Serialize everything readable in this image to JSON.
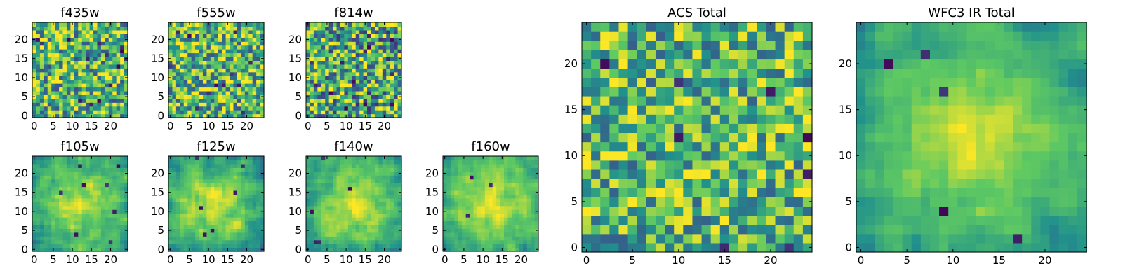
{
  "colormap": "viridis",
  "colormap_stops": [
    "#440154",
    "#3b528b",
    "#21918c",
    "#5ec962",
    "#fde725"
  ],
  "chart_data": [
    {
      "type": "heatmap",
      "title": "f435w",
      "grid": [
        25,
        25
      ],
      "xlim": [
        0,
        24
      ],
      "ylim": [
        0,
        24
      ],
      "xticks": [
        0,
        5,
        10,
        15,
        20
      ],
      "yticks": [
        0,
        5,
        10,
        15,
        20
      ],
      "seed": 11,
      "pattern": "noise",
      "level": 0.66,
      "spread": 0.42,
      "dark_spots": 14
    },
    {
      "type": "heatmap",
      "title": "f555w",
      "grid": [
        25,
        25
      ],
      "xlim": [
        0,
        24
      ],
      "ylim": [
        0,
        24
      ],
      "xticks": [
        0,
        5,
        10,
        15,
        20
      ],
      "yticks": [
        0,
        5,
        10,
        15,
        20
      ],
      "seed": 23,
      "pattern": "noise",
      "level": 0.68,
      "spread": 0.42,
      "dark_spots": 12
    },
    {
      "type": "heatmap",
      "title": "f814w",
      "grid": [
        25,
        25
      ],
      "xlim": [
        0,
        24
      ],
      "ylim": [
        0,
        24
      ],
      "xticks": [
        0,
        5,
        10,
        15,
        20
      ],
      "yticks": [
        0,
        5,
        10,
        15,
        20
      ],
      "seed": 37,
      "pattern": "noise",
      "level": 0.62,
      "spread": 0.45,
      "dark_spots": 22
    },
    {
      "type": "heatmap",
      "title": "f105w",
      "grid": [
        25,
        25
      ],
      "xlim": [
        0,
        24
      ],
      "ylim": [
        0,
        24
      ],
      "xticks": [
        0,
        5,
        10,
        15,
        20
      ],
      "yticks": [
        0,
        5,
        10,
        15,
        20
      ],
      "seed": 41,
      "pattern": "center",
      "level": 0.5,
      "spread": 0.35,
      "dark_spots": 8
    },
    {
      "type": "heatmap",
      "title": "f125w",
      "grid": [
        25,
        25
      ],
      "xlim": [
        0,
        24
      ],
      "ylim": [
        0,
        24
      ],
      "xticks": [
        0,
        5,
        10,
        15,
        20
      ],
      "yticks": [
        0,
        5,
        10,
        15,
        20
      ],
      "seed": 53,
      "pattern": "center",
      "level": 0.5,
      "spread": 0.35,
      "dark_spots": 6
    },
    {
      "type": "heatmap",
      "title": "f140w",
      "grid": [
        25,
        25
      ],
      "xlim": [
        0,
        24
      ],
      "ylim": [
        0,
        24
      ],
      "xticks": [
        0,
        5,
        10,
        15,
        20
      ],
      "yticks": [
        0,
        5,
        10,
        15,
        20
      ],
      "seed": 67,
      "pattern": "center",
      "level": 0.52,
      "spread": 0.32,
      "dark_spots": 5
    },
    {
      "type": "heatmap",
      "title": "f160w",
      "grid": [
        25,
        25
      ],
      "xlim": [
        0,
        24
      ],
      "ylim": [
        0,
        24
      ],
      "xticks": [
        0,
        5,
        10,
        15,
        20
      ],
      "yticks": [
        0,
        5,
        10,
        15,
        20
      ],
      "seed": 79,
      "pattern": "center",
      "level": 0.55,
      "spread": 0.3,
      "dark_spots": 3
    },
    {
      "type": "heatmap",
      "title": "ACS Total",
      "grid": [
        25,
        25
      ],
      "xlim": [
        0,
        24
      ],
      "ylim": [
        0,
        24
      ],
      "xticks": [
        0,
        5,
        10,
        15,
        20
      ],
      "yticks": [
        0,
        5,
        10,
        15,
        20
      ],
      "seed": 97,
      "pattern": "noise",
      "level": 0.66,
      "spread": 0.36,
      "dark_spots": 8
    },
    {
      "type": "heatmap",
      "title": "WFC3 IR Total",
      "grid": [
        25,
        25
      ],
      "xlim": [
        0,
        24
      ],
      "ylim": [
        0,
        24
      ],
      "xticks": [
        0,
        5,
        10,
        15,
        20
      ],
      "yticks": [
        0,
        5,
        10,
        15,
        20
      ],
      "seed": 113,
      "pattern": "center",
      "level": 0.5,
      "spread": 0.28,
      "dark_spots": 6
    }
  ]
}
